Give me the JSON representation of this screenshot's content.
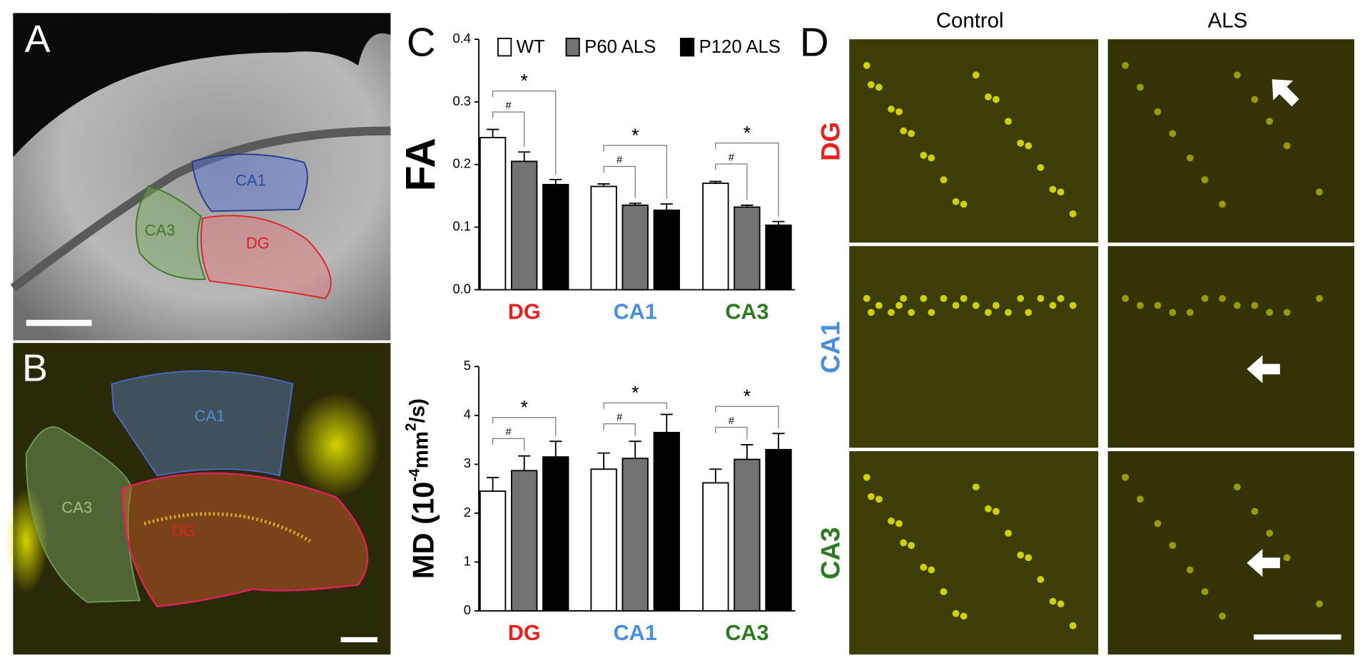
{
  "panels": {
    "A": {
      "label": "A",
      "regions": [
        "CA1",
        "CA3",
        "DG"
      ]
    },
    "B": {
      "label": "B",
      "regions": [
        "CA1",
        "CA3",
        "DG"
      ]
    },
    "C": {
      "label": "C"
    },
    "D": {
      "label": "D",
      "columns": [
        "Control",
        "ALS"
      ],
      "rows": [
        "DG",
        "CA1",
        "CA3"
      ]
    }
  },
  "chart_data": [
    {
      "type": "bar",
      "y_label": "FA",
      "categories": [
        "DG",
        "CA1",
        "CA3"
      ],
      "category_colors": [
        "#e8211f",
        "#4a8fdc",
        "#2e7a22"
      ],
      "series": [
        {
          "name": "WT",
          "color": "#ffffff",
          "values": [
            0.243,
            0.165,
            0.17
          ],
          "errors": [
            0.013,
            0.004,
            0.003
          ]
        },
        {
          "name": "P60 ALS",
          "color": "#737373",
          "values": [
            0.205,
            0.135,
            0.132
          ],
          "errors": [
            0.015,
            0.003,
            0.003
          ]
        },
        {
          "name": "P120 ALS",
          "color": "#000000",
          "values": [
            0.168,
            0.127,
            0.103
          ],
          "errors": [
            0.008,
            0.01,
            0.006
          ]
        }
      ],
      "significance": [
        [
          "#",
          "*"
        ],
        [
          "#",
          "*"
        ],
        [
          "#",
          "*"
        ]
      ],
      "legend": true,
      "ylim": [
        0,
        0.4
      ],
      "yticks": [
        {
          "value": 0,
          "label": "0.0"
        },
        0.1,
        0.2,
        0.3,
        0.4
      ]
    },
    {
      "type": "bar",
      "y_label": {
        "parts": [
          "MD (10",
          "mm",
          "/s)"
        ],
        "superscripts": [
          "-4",
          "2"
        ]
      },
      "categories": [
        "DG",
        "CA1",
        "CA3"
      ],
      "category_colors": [
        "#e8211f",
        "#4a8fdc",
        "#2e7a22"
      ],
      "series": [
        {
          "color": "#ffffff",
          "values": [
            2.45,
            2.9,
            2.62
          ],
          "errors": [
            0.28,
            0.33,
            0.28
          ]
        },
        {
          "color": "#737373",
          "values": [
            2.87,
            3.12,
            3.1
          ],
          "errors": [
            0.3,
            0.35,
            0.3
          ]
        },
        {
          "color": "#000000",
          "values": [
            3.15,
            3.65,
            3.3
          ],
          "errors": [
            0.32,
            0.37,
            0.33
          ]
        }
      ],
      "significance": [
        [
          "#",
          "*"
        ],
        [
          "#",
          "*"
        ],
        [
          "#",
          "*"
        ]
      ],
      "legend": false,
      "ylim": [
        0,
        5
      ],
      "yticks": [
        0,
        1,
        2,
        3,
        4,
        5
      ]
    }
  ]
}
